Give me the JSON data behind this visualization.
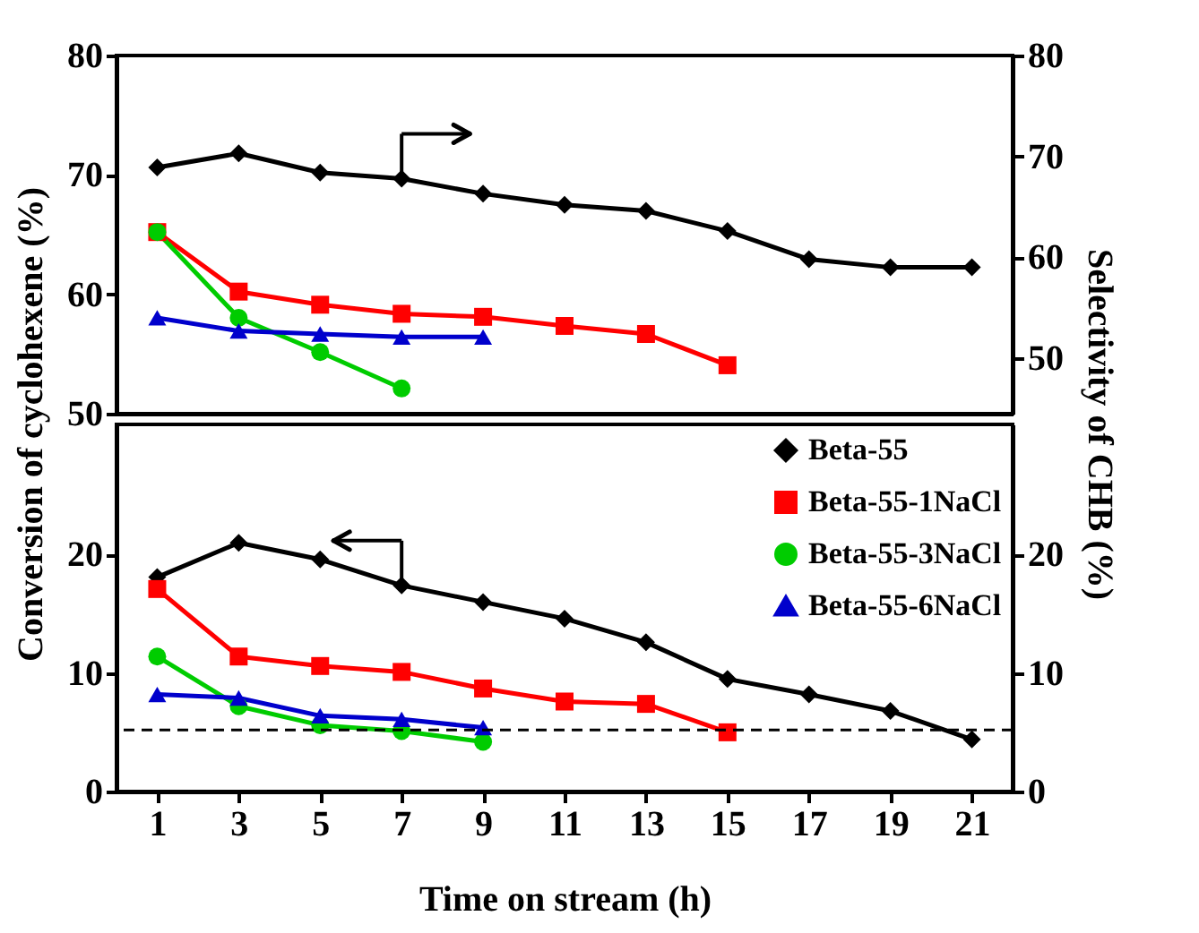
{
  "chart_data": [
    {
      "type": "line",
      "categories": [
        null,
        null,
        null,
        null,
        null,
        null,
        null,
        null,
        null,
        null,
        null
      ],
      "ylim": [
        50,
        80
      ],
      "yticks": [
        50,
        60,
        70,
        80
      ],
      "y2lim": [
        44.5,
        80
      ],
      "y2ticks": [
        50,
        60,
        70,
        80
      ],
      "tick_labels": "y",
      "grid": false,
      "legend": false,
      "series": [
        {
          "color": "#000000",
          "marker": "diamond",
          "axis": "y2",
          "values": [
            68.9,
            70.3,
            68.4,
            67.8,
            66.3,
            65.2,
            64.6,
            62.6,
            59.8,
            59.0,
            59.0
          ]
        },
        {
          "color": "#ff0000",
          "marker": "square",
          "axis": "y2",
          "values": [
            62.5,
            56.6,
            55.3,
            54.4,
            54.1,
            53.2,
            52.4,
            49.3,
            null,
            null,
            null
          ]
        },
        {
          "color": "#00cc00",
          "marker": "circle",
          "axis": "y2",
          "values": [
            62.5,
            54.0,
            50.6,
            47.0,
            null,
            null,
            null,
            null,
            null,
            null,
            null
          ]
        },
        {
          "color": "#0000cc",
          "marker": "triangle",
          "axis": "y2",
          "values": [
            54.0,
            52.7,
            52.4,
            52.1,
            52.1,
            null,
            null,
            null,
            null,
            null,
            null
          ]
        }
      ]
    },
    {
      "type": "line",
      "xlabel": "Time on stream (h)",
      "ylabel": "Conversion of cyclohexene (%)",
      "y2label": "Selectivity of CHB (%)",
      "xlim": [
        0,
        22
      ],
      "xticks": [
        1,
        3,
        5,
        7,
        9,
        11,
        13,
        15,
        17,
        19,
        21
      ],
      "ylim": [
        0,
        31
      ],
      "yticks": [
        0,
        10,
        20
      ],
      "y2lim": [
        0,
        31
      ],
      "y2ticks": [
        0,
        10,
        20
      ],
      "grid": false,
      "legend": "top right",
      "ref_lines": [
        {
          "axis": "y",
          "value": 5.2,
          "color": "#000000",
          "line_style": "dashed"
        }
      ],
      "series": [
        {
          "name": "Beta-55",
          "color": "#000000",
          "marker": "diamond",
          "x": [
            1,
            3,
            5,
            7,
            9,
            11,
            13,
            15,
            17,
            19,
            21
          ],
          "values": [
            18.1,
            21.0,
            19.6,
            17.4,
            16.0,
            14.6,
            12.6,
            9.5,
            8.2,
            6.8,
            4.4
          ]
        },
        {
          "name": "Beta-55-1NaCl",
          "color": "#ff0000",
          "marker": "square",
          "x": [
            1,
            3,
            5,
            7,
            9,
            11,
            13,
            15
          ],
          "values": [
            17.1,
            11.4,
            10.6,
            10.1,
            8.7,
            7.6,
            7.4,
            5.0
          ]
        },
        {
          "name": "Beta-55-3NaCl",
          "color": "#00cc00",
          "marker": "circle",
          "x": [
            1,
            3,
            5,
            7,
            9
          ],
          "values": [
            11.4,
            7.2,
            5.6,
            5.1,
            4.2
          ]
        },
        {
          "name": "Beta-55-6NaCl",
          "color": "#0000cc",
          "marker": "triangle",
          "x": [
            1,
            3,
            5,
            7,
            9
          ],
          "values": [
            8.2,
            7.9,
            6.4,
            6.1,
            5.4
          ]
        }
      ]
    }
  ]
}
